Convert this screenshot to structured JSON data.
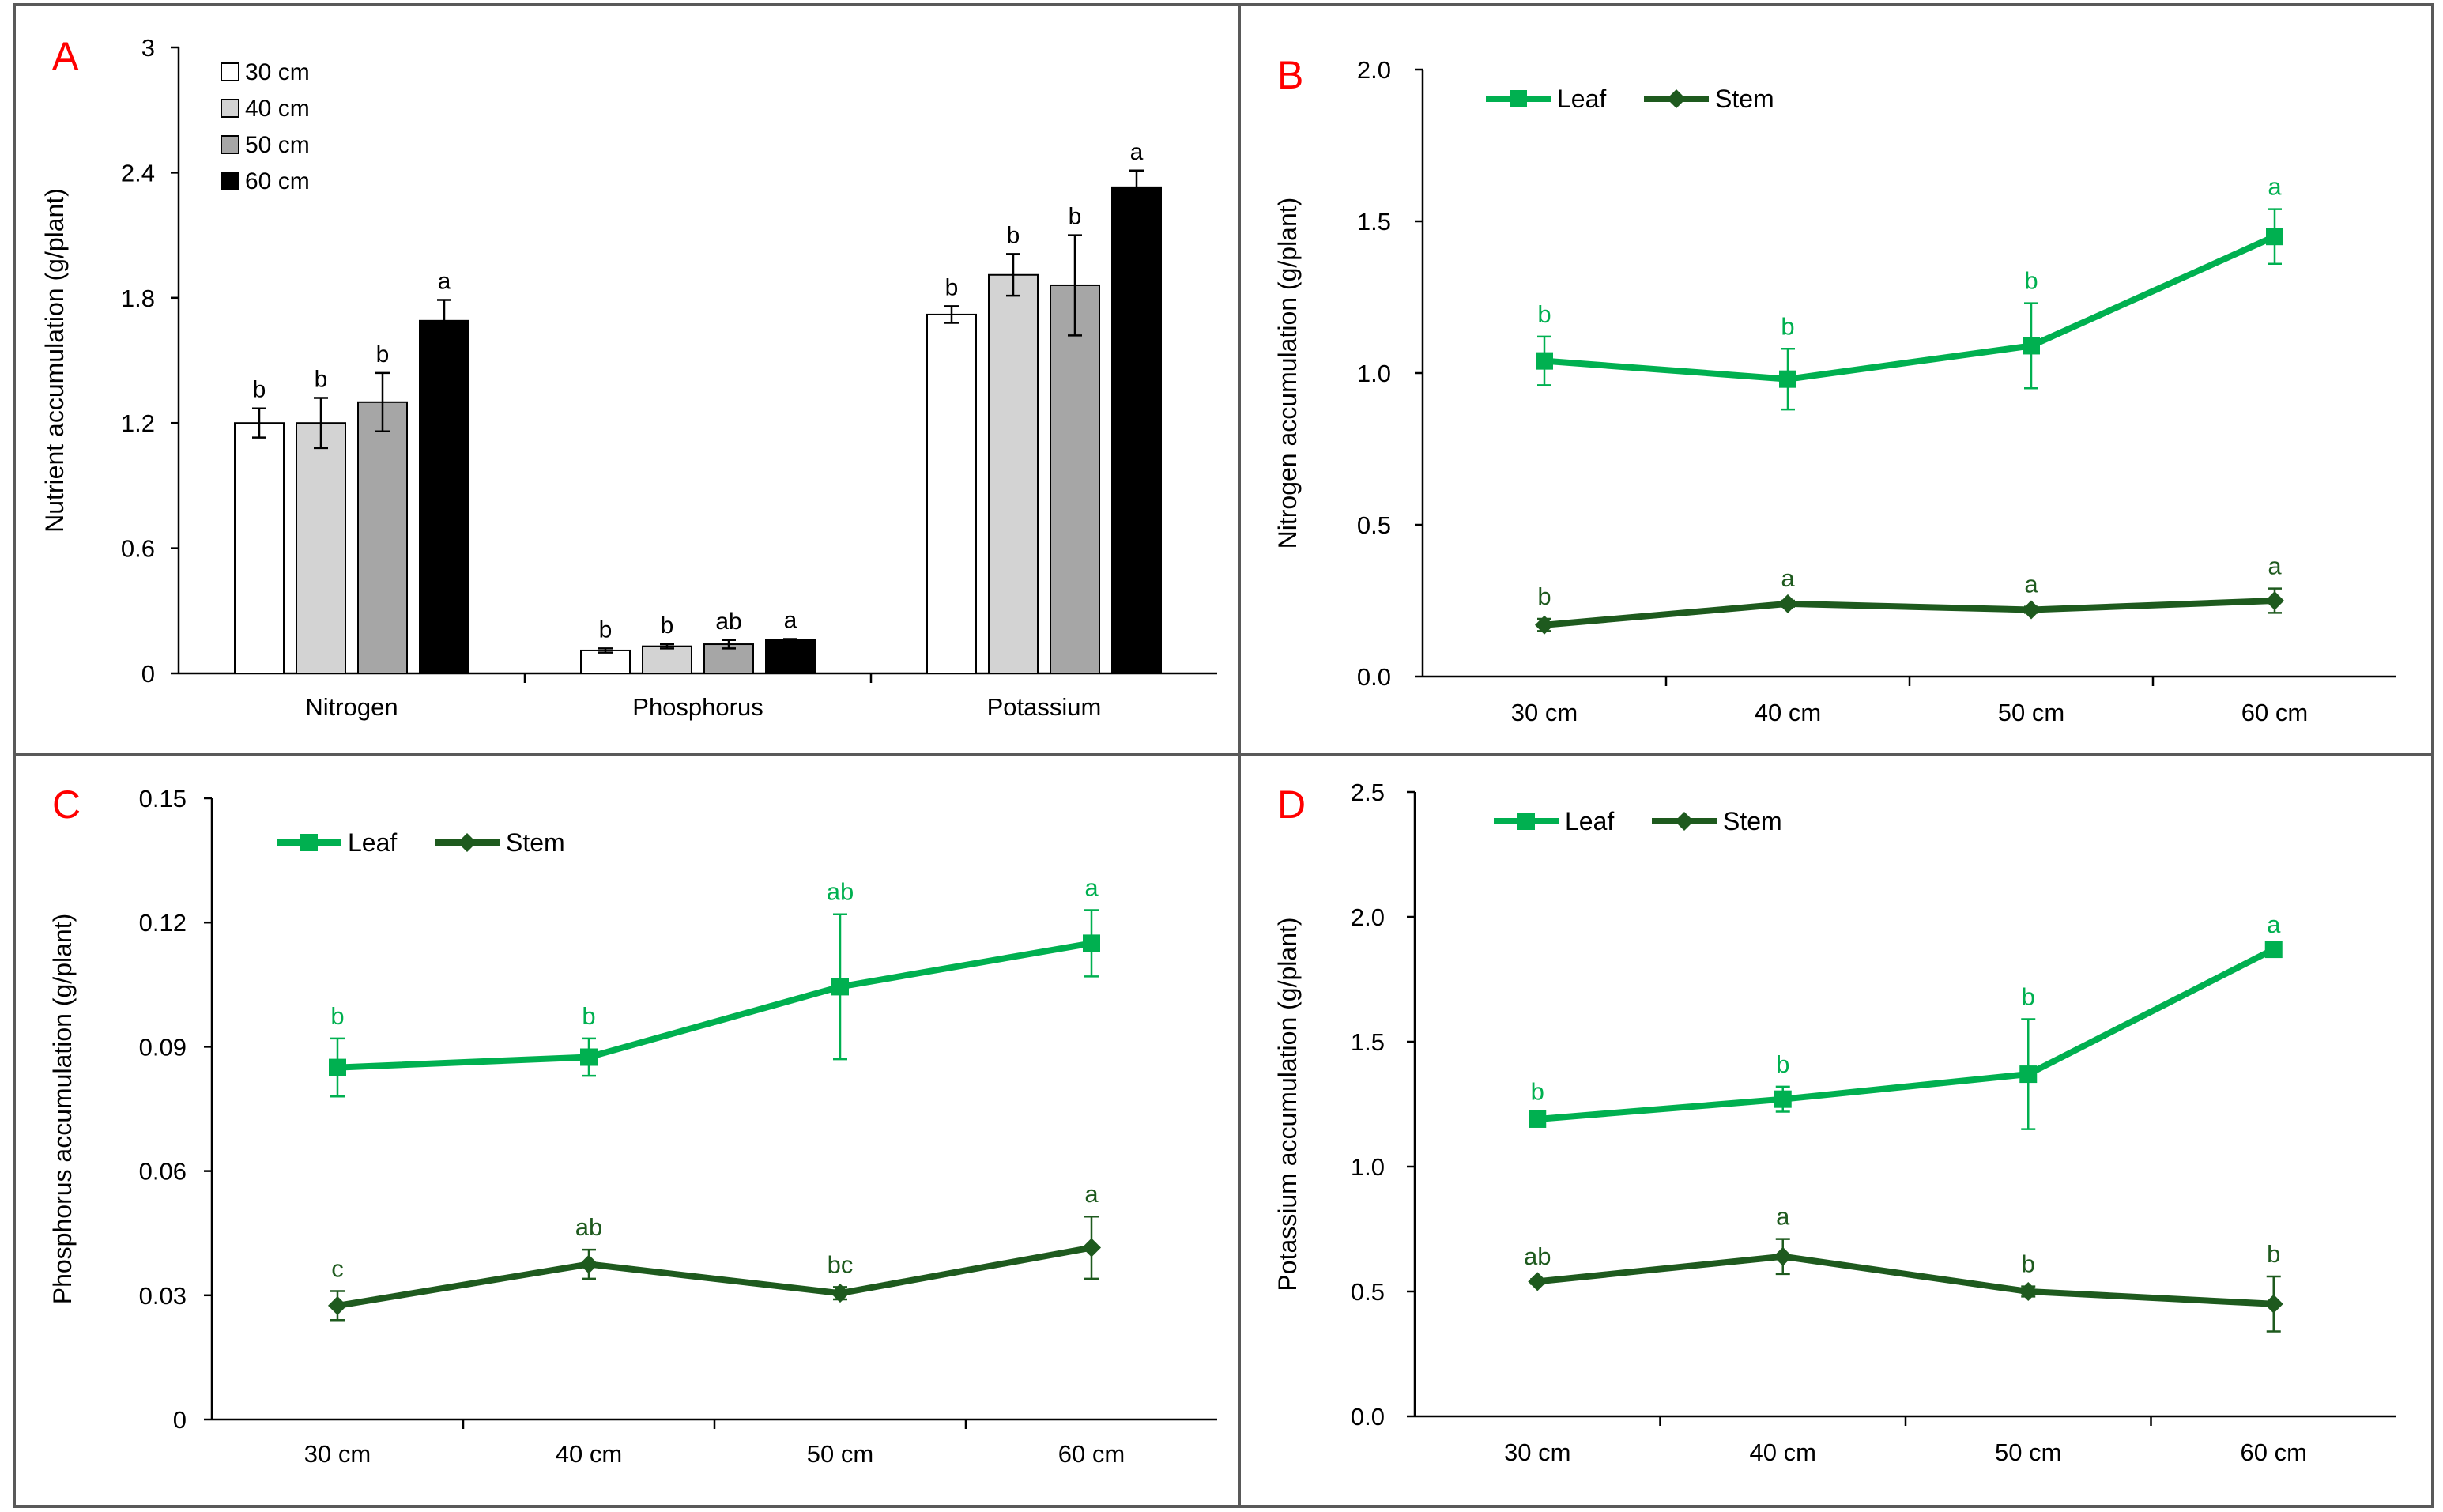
{
  "colors": {
    "leaf": "#00b050",
    "stem": "#1e5a1e",
    "bar_30": "#ffffff",
    "bar_40": "#d3d3d3",
    "bar_50": "#a6a6a6",
    "bar_60": "#000000",
    "panel_letter": "#ff0000",
    "axis": "#000000",
    "border": "#595959"
  },
  "chart_data": [
    {
      "panel": "A",
      "type": "bar",
      "ylabel": "Nutrient accumulation (g/plant)",
      "ylim": [
        0,
        3
      ],
      "yticks": [
        "0",
        "0.6",
        "1.2",
        "1.8",
        "2.4",
        "3"
      ],
      "categories": [
        "Nitrogen",
        "Phosphorus",
        "Potassium"
      ],
      "legend_position": "top-left",
      "series": [
        {
          "name": "30 cm",
          "color": "#ffffff",
          "values": [
            1.2,
            0.11,
            1.72
          ],
          "errors": [
            0.07,
            0.01,
            0.04
          ],
          "letters": [
            "b",
            "b",
            "b"
          ]
        },
        {
          "name": "40 cm",
          "color": "#d3d3d3",
          "values": [
            1.2,
            0.13,
            1.91
          ],
          "errors": [
            0.12,
            0.01,
            0.1
          ],
          "letters": [
            "b",
            "b",
            "b"
          ]
        },
        {
          "name": "50 cm",
          "color": "#a6a6a6",
          "values": [
            1.3,
            0.14,
            1.86
          ],
          "errors": [
            0.14,
            0.02,
            0.24
          ],
          "letters": [
            "b",
            "ab",
            "b"
          ]
        },
        {
          "name": "60 cm",
          "color": "#000000",
          "values": [
            1.69,
            0.16,
            2.33
          ],
          "errors": [
            0.1,
            0.005,
            0.08
          ],
          "letters": [
            "a",
            "a",
            "a"
          ]
        }
      ]
    },
    {
      "panel": "B",
      "type": "line",
      "ylabel": "Nitrogen accumulation (g/plant)",
      "ylim": [
        0,
        2
      ],
      "yticks": [
        "0.0",
        "0.5",
        "1.0",
        "1.5",
        "2.0"
      ],
      "categories": [
        "30 cm",
        "40 cm",
        "50 cm",
        "60 cm"
      ],
      "legend_position": "top-left",
      "series": [
        {
          "name": "Leaf",
          "marker": "square",
          "color": "#00b050",
          "values": [
            1.04,
            0.98,
            1.09,
            1.45
          ],
          "errors": [
            0.08,
            0.1,
            0.14,
            0.09
          ],
          "letters": [
            "b",
            "b",
            "b",
            "a"
          ]
        },
        {
          "name": "Stem",
          "marker": "diamond",
          "color": "#1e5a1e",
          "values": [
            0.17,
            0.24,
            0.22,
            0.25
          ],
          "errors": [
            0.02,
            0.01,
            0.01,
            0.04
          ],
          "letters": [
            "b",
            "a",
            "a",
            "a"
          ]
        }
      ]
    },
    {
      "panel": "C",
      "type": "line",
      "ylabel": "Phosphorus accumulation (g/plant)",
      "ylim": [
        0,
        0.15
      ],
      "yticks": [
        "0",
        "0.03",
        "0.06",
        "0.09",
        "0.12",
        "0.15"
      ],
      "categories": [
        "30 cm",
        "40 cm",
        "50 cm",
        "60 cm"
      ],
      "legend_position": "top-left",
      "series": [
        {
          "name": "Leaf",
          "marker": "square",
          "color": "#00b050",
          "values": [
            0.085,
            0.0875,
            0.1045,
            0.115
          ],
          "errors": [
            0.007,
            0.0045,
            0.0175,
            0.008
          ],
          "letters": [
            "b",
            "b",
            "ab",
            "a"
          ]
        },
        {
          "name": "Stem",
          "marker": "diamond",
          "color": "#1e5a1e",
          "values": [
            0.0275,
            0.0375,
            0.0305,
            0.0415
          ],
          "errors": [
            0.0035,
            0.0035,
            0.0015,
            0.0075
          ],
          "letters": [
            "c",
            "ab",
            "bc",
            "a"
          ]
        }
      ]
    },
    {
      "panel": "D",
      "type": "line",
      "ylabel": "Potassium accumulation (g/plant)",
      "ylim": [
        0,
        2.5
      ],
      "yticks": [
        "0.0",
        "0.5",
        "1.0",
        "1.5",
        "2.0",
        "2.5"
      ],
      "categories": [
        "30 cm",
        "40 cm",
        "50 cm",
        "60 cm"
      ],
      "legend_position": "top-left",
      "series": [
        {
          "name": "Leaf",
          "marker": "square",
          "color": "#00b050",
          "values": [
            1.19,
            1.27,
            1.37,
            1.87
          ],
          "errors": [
            0.02,
            0.05,
            0.22,
            0.01
          ],
          "letters": [
            "b",
            "b",
            "b",
            "a"
          ]
        },
        {
          "name": "Stem",
          "marker": "diamond",
          "color": "#1e5a1e",
          "values": [
            0.54,
            0.64,
            0.5,
            0.45
          ],
          "errors": [
            0.01,
            0.07,
            0.02,
            0.11
          ],
          "letters": [
            "ab",
            "a",
            "b",
            "b"
          ]
        }
      ]
    }
  ]
}
